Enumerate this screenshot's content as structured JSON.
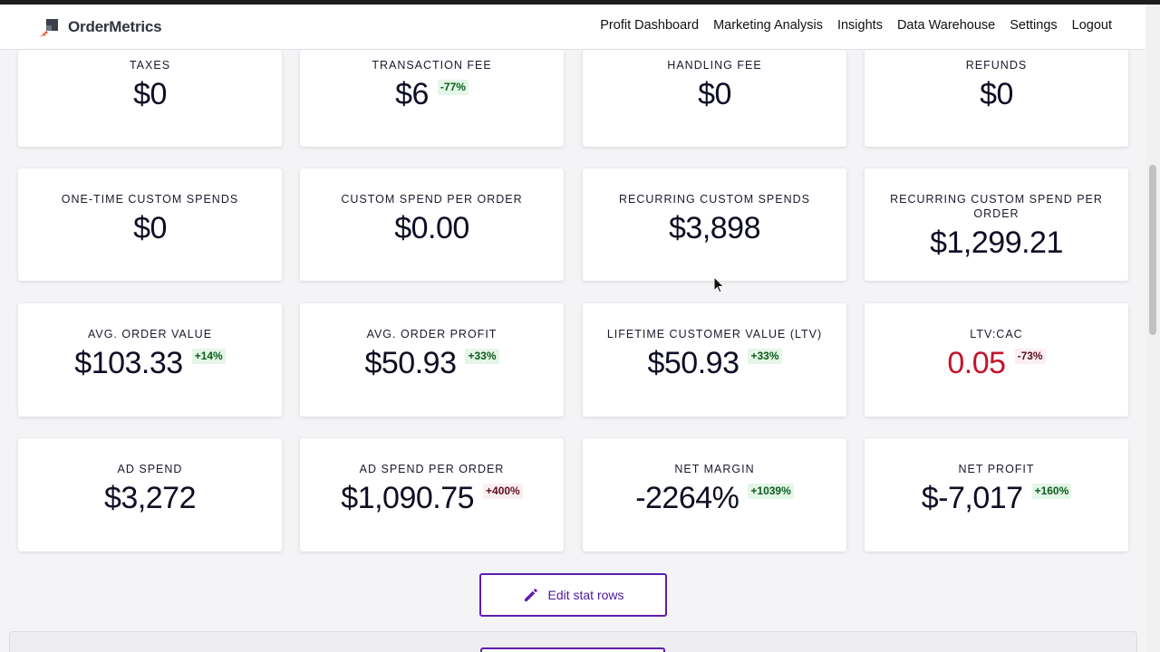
{
  "app": {
    "brand": "OrderMetrics"
  },
  "nav": {
    "items": [
      {
        "label": "Profit Dashboard"
      },
      {
        "label": "Marketing Analysis"
      },
      {
        "label": "Insights"
      },
      {
        "label": "Data Warehouse"
      },
      {
        "label": "Settings"
      },
      {
        "label": "Logout"
      }
    ]
  },
  "stats": [
    {
      "label": "Taxes",
      "value": "$0",
      "badge": ""
    },
    {
      "label": "Transaction Fee",
      "value": "$6",
      "badge": "-77%",
      "badge_type": "up"
    },
    {
      "label": "Handling Fee",
      "value": "$0",
      "badge": ""
    },
    {
      "label": "Refunds",
      "value": "$0",
      "badge": ""
    },
    {
      "label": "One-Time Custom Spends",
      "value": "$0",
      "badge": ""
    },
    {
      "label": "Custom Spend Per Order",
      "value": "$0.00",
      "badge": ""
    },
    {
      "label": "Recurring Custom Spends",
      "value": "$3,898",
      "badge": ""
    },
    {
      "label": "Recurring Custom Spend Per Order",
      "value": "$1,299.21",
      "badge": ""
    },
    {
      "label": "Avg. Order Value",
      "value": "$103.33",
      "badge": "+14%",
      "badge_type": "up"
    },
    {
      "label": "Avg. Order Profit",
      "value": "$50.93",
      "badge": "+33%",
      "badge_type": "up"
    },
    {
      "label": "Lifetime Customer Value (LTV)",
      "value": "$50.93",
      "badge": "+33%",
      "badge_type": "up"
    },
    {
      "label": "LTV:CAC",
      "value": "0.05",
      "badge": "-73%",
      "badge_type": "down",
      "value_negative": true
    },
    {
      "label": "Ad Spend",
      "value": "$3,272",
      "badge": ""
    },
    {
      "label": "Ad Spend Per Order",
      "value": "$1,090.75",
      "badge": "+400%",
      "badge_type": "down"
    },
    {
      "label": "Net Margin",
      "value": "-2264%",
      "badge": "+1039%",
      "badge_type": "up"
    },
    {
      "label": "Net Profit",
      "value": "$-7,017",
      "badge": "+160%",
      "badge_type": "up"
    }
  ],
  "actions": {
    "edit_label": "Edit stat rows"
  },
  "colors": {
    "accent": "#5e1eb0",
    "negative": "#c3142d",
    "badge_up_bg": "#e4f6e7",
    "badge_down_bg": "#fbeef0"
  },
  "icons": {
    "brand": "rocket-logo-icon",
    "edit": "pencil-icon",
    "cursor": "mouse-pointer-icon"
  }
}
